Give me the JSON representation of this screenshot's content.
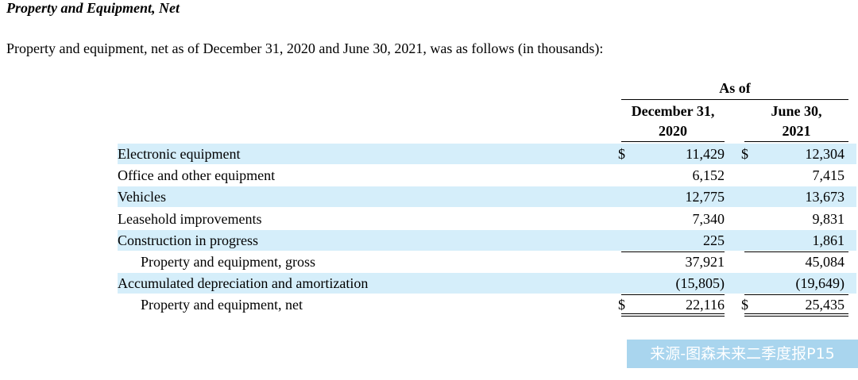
{
  "heading": "Property and Equipment, Net",
  "intro": "Property and equipment, net as of December 31, 2020 and June 30, 2021, was as follows (in thousands):",
  "table": {
    "group_header": "As of",
    "columns": [
      [
        "December 31,",
        "2020"
      ],
      [
        "June 30,",
        "2021"
      ]
    ],
    "rows": [
      {
        "label": "Electronic equipment",
        "currency": "$",
        "values": [
          "11,429",
          "12,304"
        ]
      },
      {
        "label": "Office and other equipment",
        "values": [
          "6,152",
          "7,415"
        ]
      },
      {
        "label": "Vehicles",
        "values": [
          "12,775",
          "13,673"
        ]
      },
      {
        "label": "Leasehold improvements",
        "values": [
          "7,340",
          "9,831"
        ]
      },
      {
        "label": "Construction in progress",
        "values": [
          "225",
          "1,861"
        ]
      },
      {
        "label": "Property and equipment, gross",
        "values": [
          "37,921",
          "45,084"
        ],
        "indent": true,
        "rule_above": true
      },
      {
        "label": "Accumulated depreciation and amortization",
        "values": [
          "(15,805)",
          "(19,649)"
        ]
      },
      {
        "label": "Property and equipment, net",
        "currency": "$",
        "values": [
          "22,116",
          "25,435"
        ],
        "indent": true,
        "rule_above": true,
        "double_rule": true
      }
    ]
  },
  "watermark": "来源-图森未来二季度报P15"
}
